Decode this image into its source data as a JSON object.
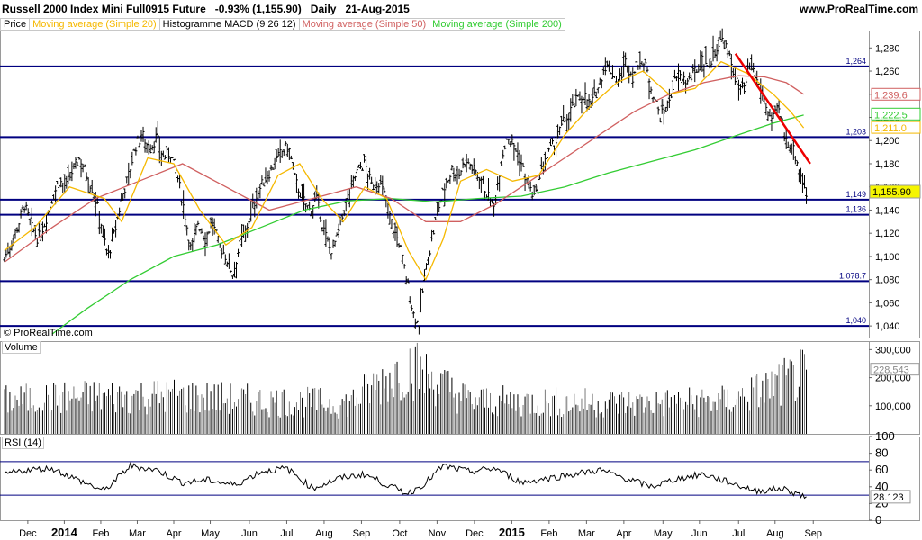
{
  "header": {
    "title": "Russell 2000 Index Mini Full0915 Future   -0.93% (1,155.90)   Daily   21-Aug-2015",
    "site": "www.ProRealTime.com"
  },
  "legend": [
    {
      "label": "Price",
      "color": "#000000"
    },
    {
      "label": "Moving average (Simple 20)",
      "color": "#f5b800"
    },
    {
      "label": "Histogramme MACD (9 26 12)",
      "color": "#000000"
    },
    {
      "label": "Moving average (Simple 50)",
      "color": "#d06060"
    },
    {
      "label": "Moving average (Simple 200)",
      "color": "#33cc33"
    }
  ],
  "copyright": "© ProRealTime.com",
  "panes": {
    "volume_label": "Volume",
    "rsi_label": "RSI (14)"
  },
  "chart_data": [
    {
      "type": "ohlc",
      "name": "price",
      "ylim": [
        1030,
        1295
      ],
      "yticks": [
        1040,
        1060,
        1080,
        1100,
        1120,
        1140,
        1160,
        1180,
        1200,
        1220,
        1240,
        1260,
        1280
      ],
      "ytick_labels": [
        "1,040",
        "1,060",
        "1,080",
        "1,100",
        "1,120",
        "1,140",
        "1,160",
        "1,180",
        "1,200",
        "1,220",
        "1,240",
        "1,260",
        "1,280"
      ],
      "last_price": {
        "value": 1155.9,
        "label": "1,155.90",
        "color": "#f5f500"
      },
      "ma_values": [
        {
          "name": "Moving average (Simple 50)",
          "value": 1239.6,
          "label": "1,239.6",
          "color": "#d06060"
        },
        {
          "name": "Moving average (Simple 200)",
          "value": 1222.5,
          "label": "1,222.5",
          "color": "#33cc33"
        },
        {
          "name": "Moving average (Simple 20)",
          "value": 1211.0,
          "label": "1,211.0",
          "color": "#f5b800"
        }
      ],
      "hlines": [
        {
          "value": 1264,
          "label": "1,264"
        },
        {
          "value": 1203,
          "label": "1,203"
        },
        {
          "value": 1149,
          "label": "1,149"
        },
        {
          "value": 1136,
          "label": "1,136"
        },
        {
          "value": 1078.7,
          "label": "1,078.7"
        },
        {
          "value": 1040,
          "label": "1,040"
        }
      ],
      "trendline": {
        "from": [
          0.8465,
          1275
        ],
        "to": [
          0.9325,
          1180
        ],
        "color": "#ee0000"
      },
      "months": [
        "Dec",
        "2014",
        "Feb",
        "Mar",
        "Apr",
        "May",
        "Jun",
        "Jul",
        "Aug",
        "Sep",
        "Oct",
        "Nov",
        "Dec",
        "2015",
        "Feb",
        "Mar",
        "Apr",
        "May",
        "Jun",
        "Jul",
        "Aug",
        "Sep"
      ],
      "month_pos": [
        0.032,
        0.074,
        0.116,
        0.158,
        0.2,
        0.242,
        0.287,
        0.33,
        0.373,
        0.416,
        0.46,
        0.503,
        0.546,
        0.589,
        0.632,
        0.675,
        0.718,
        0.763,
        0.805,
        0.85,
        0.892,
        0.936
      ],
      "bold_months": [
        "2014",
        "2015"
      ],
      "price_path": [
        [
          0.005,
          1098
        ],
        [
          0.012,
          1110
        ],
        [
          0.02,
          1125
        ],
        [
          0.028,
          1145
        ],
        [
          0.036,
          1125
        ],
        [
          0.044,
          1115
        ],
        [
          0.052,
          1130
        ],
        [
          0.06,
          1150
        ],
        [
          0.068,
          1165
        ],
        [
          0.076,
          1160
        ],
        [
          0.084,
          1175
        ],
        [
          0.092,
          1185
        ],
        [
          0.1,
          1170
        ],
        [
          0.108,
          1155
        ],
        [
          0.116,
          1130
        ],
        [
          0.124,
          1100
        ],
        [
          0.132,
          1120
        ],
        [
          0.14,
          1150
        ],
        [
          0.148,
          1170
        ],
        [
          0.156,
          1195
        ],
        [
          0.164,
          1205
        ],
        [
          0.172,
          1192
        ],
        [
          0.18,
          1203
        ],
        [
          0.188,
          1185
        ],
        [
          0.196,
          1190
        ],
        [
          0.204,
          1170
        ],
        [
          0.212,
          1140
        ],
        [
          0.22,
          1105
        ],
        [
          0.228,
          1130
        ],
        [
          0.236,
          1115
        ],
        [
          0.244,
          1130
        ],
        [
          0.252,
          1110
        ],
        [
          0.26,
          1100
        ],
        [
          0.268,
          1085
        ],
        [
          0.276,
          1110
        ],
        [
          0.284,
          1125
        ],
        [
          0.292,
          1145
        ],
        [
          0.3,
          1160
        ],
        [
          0.308,
          1170
        ],
        [
          0.316,
          1180
        ],
        [
          0.324,
          1190
        ],
        [
          0.332,
          1195
        ],
        [
          0.34,
          1165
        ],
        [
          0.348,
          1150
        ],
        [
          0.356,
          1140
        ],
        [
          0.364,
          1150
        ],
        [
          0.372,
          1125
        ],
        [
          0.38,
          1105
        ],
        [
          0.388,
          1115
        ],
        [
          0.396,
          1140
        ],
        [
          0.404,
          1160
        ],
        [
          0.412,
          1175
        ],
        [
          0.42,
          1180
        ],
        [
          0.428,
          1160
        ],
        [
          0.436,
          1165
        ],
        [
          0.444,
          1150
        ],
        [
          0.452,
          1125
        ],
        [
          0.46,
          1110
        ],
        [
          0.468,
          1080
        ],
        [
          0.476,
          1050
        ],
        [
          0.482,
          1040
        ],
        [
          0.488,
          1080
        ],
        [
          0.496,
          1110
        ],
        [
          0.504,
          1140
        ],
        [
          0.512,
          1160
        ],
        [
          0.52,
          1175
        ],
        [
          0.528,
          1170
        ],
        [
          0.536,
          1185
        ],
        [
          0.544,
          1175
        ],
        [
          0.552,
          1170
        ],
        [
          0.56,
          1155
        ],
        [
          0.568,
          1140
        ],
        [
          0.576,
          1180
        ],
        [
          0.584,
          1205
        ],
        [
          0.592,
          1195
        ],
        [
          0.6,
          1180
        ],
        [
          0.608,
          1160
        ],
        [
          0.616,
          1150
        ],
        [
          0.624,
          1175
        ],
        [
          0.632,
          1190
        ],
        [
          0.64,
          1200
        ],
        [
          0.648,
          1215
        ],
        [
          0.656,
          1225
        ],
        [
          0.664,
          1235
        ],
        [
          0.672,
          1240
        ],
        [
          0.68,
          1230
        ],
        [
          0.688,
          1245
        ],
        [
          0.696,
          1265
        ],
        [
          0.704,
          1260
        ],
        [
          0.712,
          1250
        ],
        [
          0.72,
          1268
        ],
        [
          0.728,
          1255
        ],
        [
          0.736,
          1270
        ],
        [
          0.744,
          1262
        ],
        [
          0.752,
          1240
        ],
        [
          0.76,
          1220
        ],
        [
          0.768,
          1230
        ],
        [
          0.776,
          1250
        ],
        [
          0.784,
          1255
        ],
        [
          0.792,
          1250
        ],
        [
          0.8,
          1260
        ],
        [
          0.808,
          1270
        ],
        [
          0.816,
          1265
        ],
        [
          0.824,
          1280
        ],
        [
          0.832,
          1288
        ],
        [
          0.84,
          1270
        ],
        [
          0.848,
          1250
        ],
        [
          0.856,
          1240
        ],
        [
          0.864,
          1265
        ],
        [
          0.872,
          1250
        ],
        [
          0.88,
          1235
        ],
        [
          0.888,
          1215
        ],
        [
          0.896,
          1228
        ],
        [
          0.904,
          1200
        ],
        [
          0.912,
          1195
        ],
        [
          0.92,
          1175
        ],
        [
          0.928,
          1155
        ]
      ],
      "ma20_path": [
        [
          0.005,
          1105
        ],
        [
          0.04,
          1125
        ],
        [
          0.08,
          1160
        ],
        [
          0.12,
          1150
        ],
        [
          0.14,
          1130
        ],
        [
          0.17,
          1185
        ],
        [
          0.2,
          1180
        ],
        [
          0.23,
          1140
        ],
        [
          0.26,
          1110
        ],
        [
          0.29,
          1125
        ],
        [
          0.32,
          1170
        ],
        [
          0.345,
          1180
        ],
        [
          0.37,
          1150
        ],
        [
          0.395,
          1130
        ],
        [
          0.42,
          1160
        ],
        [
          0.445,
          1150
        ],
        [
          0.47,
          1105
        ],
        [
          0.49,
          1080
        ],
        [
          0.51,
          1115
        ],
        [
          0.53,
          1165
        ],
        [
          0.56,
          1175
        ],
        [
          0.59,
          1165
        ],
        [
          0.62,
          1170
        ],
        [
          0.65,
          1205
        ],
        [
          0.68,
          1230
        ],
        [
          0.71,
          1250
        ],
        [
          0.74,
          1260
        ],
        [
          0.77,
          1240
        ],
        [
          0.8,
          1245
        ],
        [
          0.83,
          1268
        ],
        [
          0.86,
          1258
        ],
        [
          0.89,
          1240
        ],
        [
          0.91,
          1225
        ],
        [
          0.925,
          1211
        ]
      ],
      "ma50_path": [
        [
          0.005,
          1095
        ],
        [
          0.06,
          1125
        ],
        [
          0.11,
          1150
        ],
        [
          0.16,
          1165
        ],
        [
          0.21,
          1180
        ],
        [
          0.26,
          1160
        ],
        [
          0.31,
          1140
        ],
        [
          0.36,
          1150
        ],
        [
          0.41,
          1160
        ],
        [
          0.45,
          1150
        ],
        [
          0.49,
          1130
        ],
        [
          0.53,
          1130
        ],
        [
          0.57,
          1145
        ],
        [
          0.61,
          1165
        ],
        [
          0.65,
          1185
        ],
        [
          0.69,
          1205
        ],
        [
          0.73,
          1225
        ],
        [
          0.77,
          1240
        ],
        [
          0.81,
          1250
        ],
        [
          0.85,
          1256
        ],
        [
          0.88,
          1255
        ],
        [
          0.905,
          1250
        ],
        [
          0.925,
          1240
        ]
      ],
      "ma200_path": [
        [
          0.06,
          1033
        ],
        [
          0.1,
          1055
        ],
        [
          0.15,
          1080
        ],
        [
          0.2,
          1100
        ],
        [
          0.25,
          1110
        ],
        [
          0.3,
          1125
        ],
        [
          0.35,
          1140
        ],
        [
          0.4,
          1148
        ],
        [
          0.45,
          1150
        ],
        [
          0.5,
          1147
        ],
        [
          0.55,
          1150
        ],
        [
          0.6,
          1152
        ],
        [
          0.65,
          1160
        ],
        [
          0.7,
          1172
        ],
        [
          0.75,
          1182
        ],
        [
          0.8,
          1192
        ],
        [
          0.85,
          1205
        ],
        [
          0.89,
          1215
        ],
        [
          0.925,
          1222
        ]
      ]
    },
    {
      "type": "bar",
      "name": "volume",
      "ylim": [
        0,
        330000
      ],
      "yticks": [
        100000,
        200000,
        300000
      ],
      "ytick_labels": [
        "100,000",
        "200,000",
        "300,000"
      ],
      "last_value": {
        "value": 228543,
        "label": "228,543"
      },
      "values_by_zone": [
        {
          "x": 0.005,
          "value": 130000
        },
        {
          "x": 0.1,
          "value": 145000
        },
        {
          "x": 0.2,
          "value": 150000
        },
        {
          "x": 0.3,
          "value": 130000
        },
        {
          "x": 0.4,
          "value": 120000
        },
        {
          "x": 0.47,
          "value": 270000
        },
        {
          "x": 0.54,
          "value": 130000
        },
        {
          "x": 0.64,
          "value": 125000
        },
        {
          "x": 0.74,
          "value": 120000
        },
        {
          "x": 0.84,
          "value": 130000
        },
        {
          "x": 0.925,
          "value": 228543
        }
      ]
    },
    {
      "type": "line",
      "name": "rsi",
      "ylim": [
        0,
        100
      ],
      "yticks": [
        0,
        20,
        40,
        60,
        80,
        100
      ],
      "ytick_labels": [
        "0",
        "20",
        "40",
        "60",
        "80",
        "100"
      ],
      "levels": [
        70,
        30
      ],
      "last_value": {
        "value": 28.123,
        "label": "28.123"
      },
      "path": [
        [
          0.005,
          55
        ],
        [
          0.03,
          60
        ],
        [
          0.06,
          62
        ],
        [
          0.09,
          48
        ],
        [
          0.12,
          35
        ],
        [
          0.15,
          65
        ],
        [
          0.18,
          60
        ],
        [
          0.21,
          45
        ],
        [
          0.24,
          48
        ],
        [
          0.27,
          42
        ],
        [
          0.3,
          58
        ],
        [
          0.33,
          62
        ],
        [
          0.36,
          38
        ],
        [
          0.39,
          50
        ],
        [
          0.42,
          55
        ],
        [
          0.45,
          40
        ],
        [
          0.47,
          32
        ],
        [
          0.49,
          45
        ],
        [
          0.51,
          65
        ],
        [
          0.54,
          58
        ],
        [
          0.57,
          62
        ],
        [
          0.6,
          45
        ],
        [
          0.63,
          50
        ],
        [
          0.66,
          55
        ],
        [
          0.69,
          60
        ],
        [
          0.72,
          50
        ],
        [
          0.75,
          40
        ],
        [
          0.78,
          50
        ],
        [
          0.81,
          55
        ],
        [
          0.84,
          45
        ],
        [
          0.87,
          35
        ],
        [
          0.9,
          38
        ],
        [
          0.928,
          28
        ]
      ]
    }
  ]
}
